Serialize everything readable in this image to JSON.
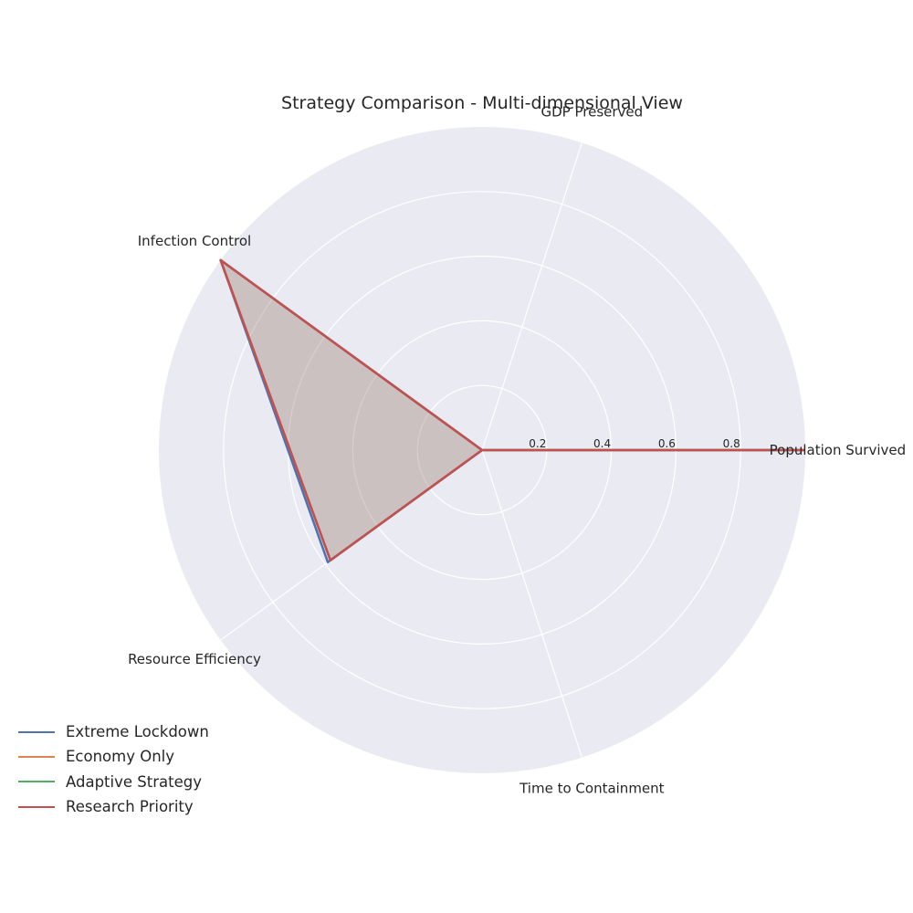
{
  "chart_data": {
    "type": "radar",
    "title": "Strategy Comparison - Multi-dimensional View",
    "axes": [
      "Population Survived",
      "GDP Preserved",
      "Infection Control",
      "Resource Efficiency",
      "Time to Containment"
    ],
    "rlim": [
      0,
      1.0
    ],
    "rticks": [
      0.2,
      0.4,
      0.6,
      0.8
    ],
    "rtick_labels": [
      "0.2",
      "0.4",
      "0.6",
      "0.8"
    ],
    "grid": true,
    "legend_position": "lower-left",
    "series": [
      {
        "name": "Extreme Lockdown",
        "color": "#4c72b0",
        "values": [
          1.0,
          0.0,
          1.0,
          0.59,
          0.0
        ]
      },
      {
        "name": "Economy Only",
        "color": "#dd8452",
        "values": [
          1.0,
          0.0,
          1.0,
          0.58,
          0.0
        ]
      },
      {
        "name": "Adaptive Strategy",
        "color": "#55a868",
        "values": [
          1.0,
          0.0,
          1.0,
          0.58,
          0.0
        ]
      },
      {
        "name": "Research Priority",
        "color": "#c44e52",
        "values": [
          1.0,
          0.0,
          1.0,
          0.58,
          0.0
        ]
      }
    ],
    "fill_color": "#c44e52"
  }
}
